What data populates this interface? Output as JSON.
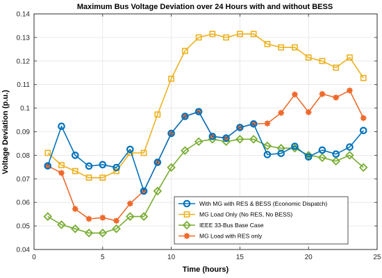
{
  "chart_data": {
    "type": "line",
    "title": "Maximum Bus Voltage Deviation  over 24 Hours with and without BESS",
    "xlabel": "Time (hours)",
    "ylabel": "Voltage Deviation (p.u.)",
    "xlim": [
      0,
      25
    ],
    "ylim": [
      0.04,
      0.14
    ],
    "xticks": [
      0,
      5,
      10,
      15,
      20,
      25
    ],
    "yticks": [
      0.04,
      0.05,
      0.06,
      0.07,
      0.08,
      0.09,
      0.1,
      0.11,
      0.12,
      0.13,
      0.14
    ],
    "ytick_labels": [
      "0.04",
      "0.05",
      "0.06",
      "0.07",
      "0.08",
      "0.09",
      "0.1",
      "0.11",
      "0.12",
      "0.13",
      "0.14"
    ],
    "grid": true,
    "legend_position": "bottom-right",
    "x": [
      1,
      2,
      3,
      4,
      5,
      6,
      7,
      8,
      9,
      10,
      11,
      12,
      13,
      14,
      15,
      16,
      17,
      18,
      19,
      20,
      21,
      22,
      23,
      24
    ],
    "series": [
      {
        "name": "With MG with RES & BESS (Economic Dispatch)",
        "color": "#0072BD",
        "marker": "circle",
        "values": [
          0.0755,
          0.0923,
          0.08,
          0.0754,
          0.076,
          0.0748,
          0.0825,
          0.0648,
          0.077,
          0.0893,
          0.0965,
          0.0985,
          0.088,
          0.0873,
          0.0918,
          0.0933,
          0.0803,
          0.0808,
          0.0838,
          0.0793,
          0.0822,
          0.0805,
          0.0835,
          0.0905
        ]
      },
      {
        "name": "MG Load Only (No RES, No BESS)",
        "color": "#EDB120",
        "marker": "square",
        "values": [
          0.081,
          0.0758,
          0.0733,
          0.0705,
          0.0705,
          0.0733,
          0.081,
          0.081,
          0.0973,
          0.1125,
          0.1243,
          0.13,
          0.1315,
          0.13,
          0.1315,
          0.1315,
          0.1272,
          0.1258,
          0.1258,
          0.1215,
          0.12,
          0.1172,
          0.1215,
          0.1128
        ]
      },
      {
        "name": "IEEE 33-Bus Base Case",
        "color": "#77AC30",
        "marker": "diamond",
        "values": [
          0.054,
          0.0505,
          0.0488,
          0.047,
          0.047,
          0.0488,
          0.054,
          0.054,
          0.0648,
          0.0748,
          0.082,
          0.0858,
          0.0868,
          0.0858,
          0.0868,
          0.0868,
          0.084,
          0.083,
          0.083,
          0.08,
          0.079,
          0.0775,
          0.08,
          0.0748
        ]
      },
      {
        "name": "MG Load with RES only",
        "color": "#EF6A2C",
        "marker": "star",
        "values": [
          0.0755,
          0.0725,
          0.0572,
          0.053,
          0.0535,
          0.0522,
          0.0595,
          0.0648,
          0.077,
          0.0893,
          0.0965,
          0.0985,
          0.088,
          0.0873,
          0.0918,
          0.0933,
          0.0935,
          0.098,
          0.1058,
          0.0983,
          0.106,
          0.1045,
          0.1075,
          0.0958
        ]
      }
    ]
  }
}
